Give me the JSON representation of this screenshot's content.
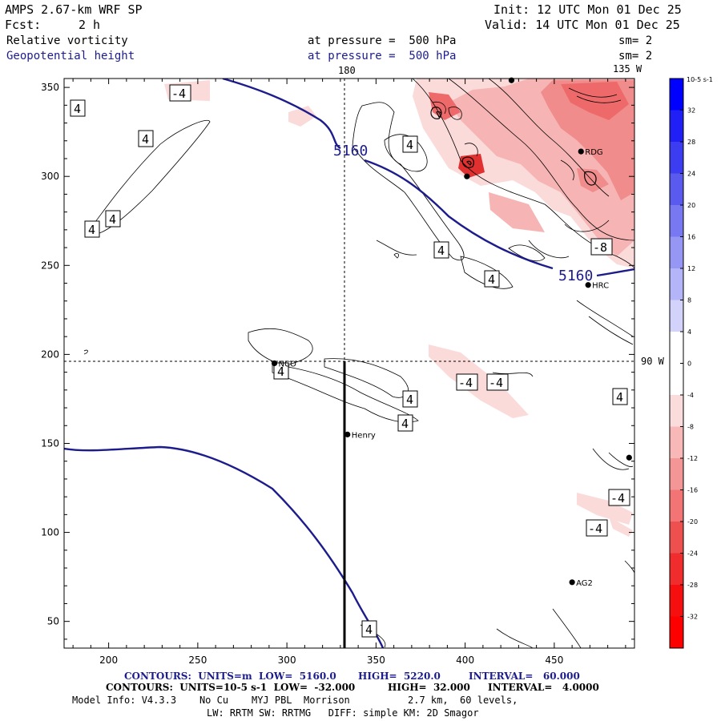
{
  "header": {
    "model": "AMPS 2.67-km WRF SP",
    "init": "Init: 12 UTC Mon 01 Dec 25",
    "fcst_label": "Fcst:",
    "fcst_value": "2 h",
    "valid": "Valid: 14 UTC Mon 01 Dec 25",
    "field1": "Relative vorticity",
    "field1_level": "at pressure =  500 hPa",
    "field1_sm": "sm= 2",
    "field2": "Geopotential height",
    "field2_level": "at pressure =  500 hPa",
    "field2_sm": "sm= 2"
  },
  "map": {
    "x_ticks": [
      "200",
      "250",
      "300",
      "350",
      "400",
      "450"
    ],
    "y_ticks": [
      "350",
      "300",
      "250",
      "200",
      "150",
      "100",
      "50"
    ],
    "x_range": [
      175,
      495
    ],
    "y_range": [
      35,
      355
    ],
    "meridian_labels": {
      "lon180": "180",
      "lon135w": "135 W",
      "lon90w": "90 W"
    },
    "height_labels": [
      "5160",
      "5160"
    ],
    "vort_labels": [
      "4",
      "4",
      "4",
      "4",
      "4",
      "4",
      "4",
      "4",
      "4",
      "4",
      "4",
      "4",
      "-4",
      "-4",
      "-4",
      "-4",
      "-4",
      "-8"
    ],
    "stations": [
      {
        "name": "RDG",
        "x": 465,
        "y": 314
      },
      {
        "name": "HRC",
        "x": 469,
        "y": 239
      },
      {
        "name": "NCO",
        "x": 293,
        "y": 195
      },
      {
        "name": "Henry",
        "x": 334,
        "y": 155
      },
      {
        "name": "AG2",
        "x": 460,
        "y": 72
      }
    ],
    "unlabeled_points": [
      {
        "x": 401,
        "y": 300
      },
      {
        "x": 426,
        "y": 354
      },
      {
        "x": 492,
        "y": 142
      }
    ]
  },
  "colorbar": {
    "units": "10-5 s-1",
    "ticks": [
      "32",
      "28",
      "24",
      "20",
      "16",
      "12",
      "8",
      "4",
      "0",
      "-4",
      "-8",
      "-12",
      "-16",
      "-20",
      "-24",
      "-28",
      "-32"
    ],
    "colors": [
      "#0000ff",
      "#1f1ff6",
      "#3c3cf0",
      "#5a5aee",
      "#7878f2",
      "#9696f5",
      "#b4b4f8",
      "#d2d2fb",
      "#ffffff",
      "#ffffff",
      "#fbdcdc",
      "#f8b8b8",
      "#f59696",
      "#f27474",
      "#ee5050",
      "#f02c2c",
      "#f60f0f",
      "#ff0000"
    ]
  },
  "footer": {
    "line1_left": "CONTOURS:  UNITS=m  LOW=  5160.0",
    "line1_high": "HIGH=  5220.0",
    "line1_interval": "INTERVAL=   60.000",
    "line2_left": "CONTOURS:  UNITS=10-5 s-1  LOW=  -32.000",
    "line2_high": "HIGH=  32.000",
    "line2_interval": "INTERVAL=   4.0000",
    "line3": "Model Info: V4.3.3    No Cu    MYJ PBL  Morrison          2.7 km,  60 levels,",
    "line4": "LW: RRTM SW: RRTMG   DIFF: simple KM: 2D Smagor"
  }
}
